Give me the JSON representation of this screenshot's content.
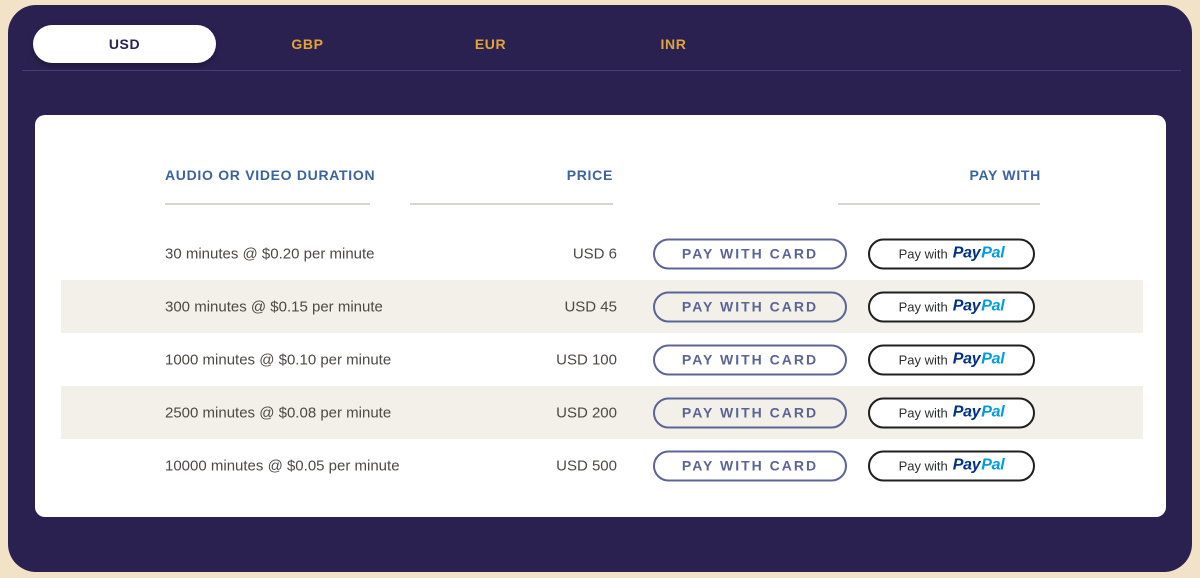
{
  "theme": {
    "outer_bg": "#f2e2c8",
    "panel_bg": "#2a2151",
    "tab_active_bg": "#ffffff",
    "tab_active_text": "#2a2151",
    "tab_inactive_text": "#e2a33c",
    "divider": "#473c73",
    "header_text": "#3c639c",
    "underline": "#d9d5ce",
    "body_text": "#4c4a45",
    "row_alt_bg": "#f3efe9",
    "card_button": "#5c6494",
    "paypal_border": "#1f1f1f",
    "paypal_text": "#2c2e2f",
    "paypal_dark": "#003087",
    "paypal_light": "#009cde"
  },
  "tabs": [
    {
      "label": "USD",
      "active": true
    },
    {
      "label": "GBP",
      "active": false
    },
    {
      "label": "EUR",
      "active": false
    },
    {
      "label": "INR",
      "active": false
    }
  ],
  "table": {
    "headers": [
      "AUDIO OR VIDEO DURATION",
      "PRICE",
      "PAY WITH"
    ],
    "card_button_label": "PAY WITH CARD",
    "paypal_button": {
      "prefix": "Pay with",
      "brand_dark": "Pay",
      "brand_light": "Pal"
    },
    "rows": [
      {
        "duration": "30 minutes @ $0.20 per minute",
        "price": "USD 6"
      },
      {
        "duration": "300 minutes @ $0.15 per minute",
        "price": "USD 45"
      },
      {
        "duration": "1000 minutes @ $0.10 per minute",
        "price": "USD 100"
      },
      {
        "duration": "2500 minutes @ $0.08 per minute",
        "price": "USD 200"
      },
      {
        "duration": "10000 minutes @ $0.05 per minute",
        "price": "USD 500"
      }
    ]
  }
}
